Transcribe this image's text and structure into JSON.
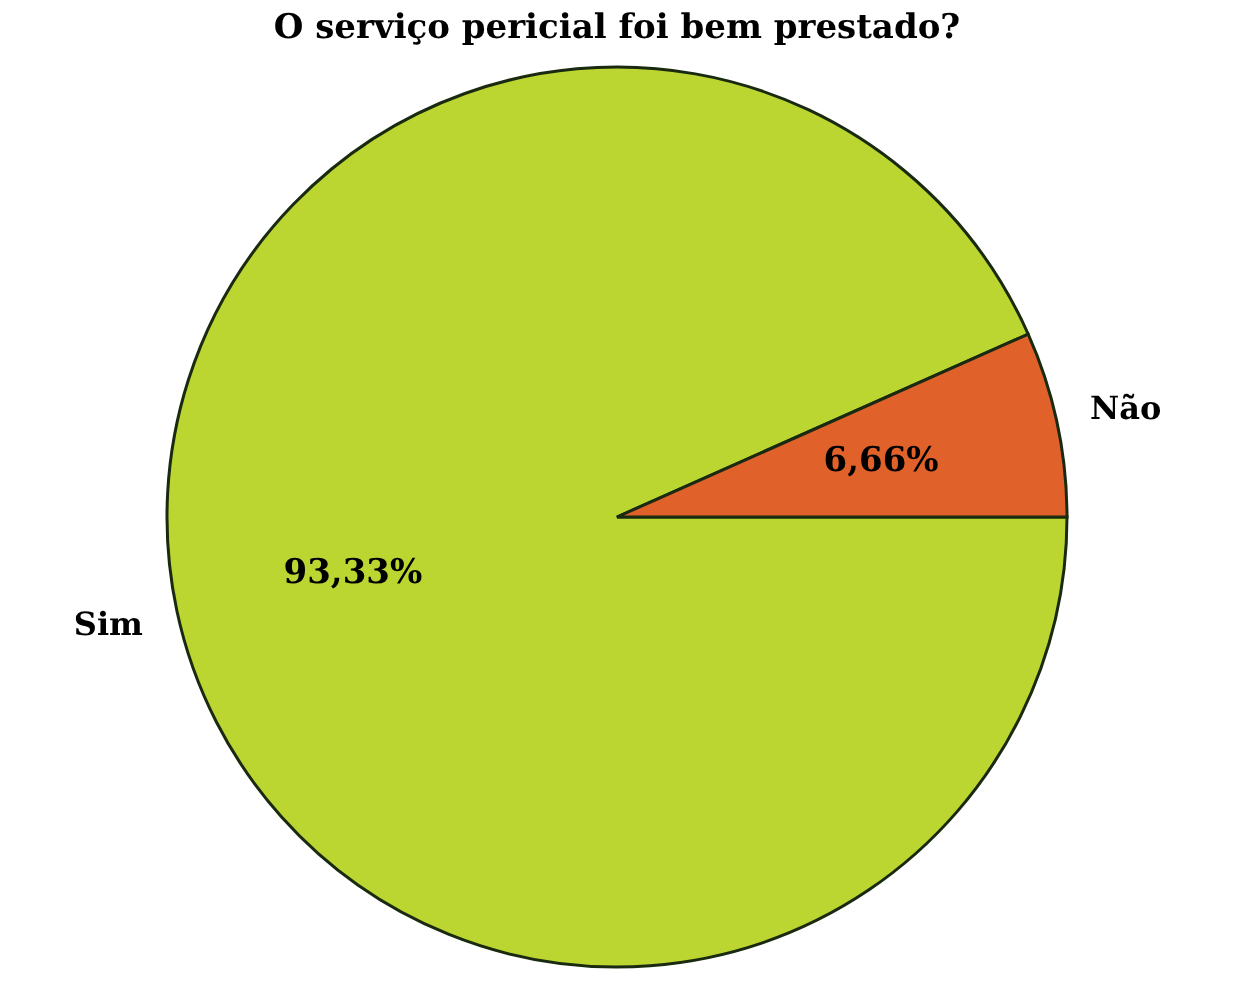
{
  "chart_data": {
    "type": "pie",
    "title": "O serviço pericial foi bem prestado?",
    "categories": [
      "Sim",
      "Não"
    ],
    "values": [
      93.33,
      6.66
    ],
    "colors": [
      "#bcd631",
      "#e0622a"
    ],
    "value_labels": [
      "93,33%",
      "6,66%"
    ],
    "legend": false
  }
}
